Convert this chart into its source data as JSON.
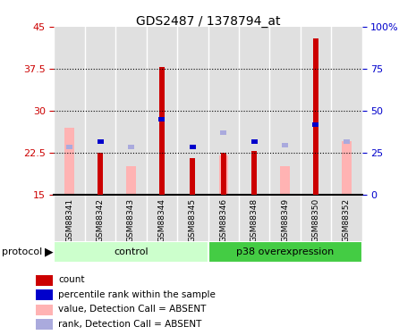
{
  "title": "GDS2487 / 1378794_at",
  "samples": [
    "GSM88341",
    "GSM88342",
    "GSM88343",
    "GSM88344",
    "GSM88345",
    "GSM88346",
    "GSM88348",
    "GSM88349",
    "GSM88350",
    "GSM88352"
  ],
  "red_values": [
    null,
    22.5,
    null,
    37.8,
    21.5,
    22.5,
    22.8,
    null,
    43.0,
    null
  ],
  "pink_values": [
    27.0,
    null,
    20.0,
    null,
    null,
    22.0,
    null,
    20.0,
    null,
    24.5
  ],
  "blue_values": [
    null,
    24.5,
    null,
    28.5,
    23.5,
    null,
    24.5,
    null,
    27.5,
    null
  ],
  "lblue_values": [
    23.5,
    null,
    23.5,
    null,
    null,
    26.0,
    null,
    23.8,
    null,
    24.5
  ],
  "ylim_left": [
    15,
    45
  ],
  "ylim_right": [
    0,
    100
  ],
  "yticks_left": [
    15,
    22.5,
    30,
    37.5,
    45
  ],
  "yticks_right": [
    0,
    25,
    50,
    75,
    100
  ],
  "ytick_labels_left": [
    "15",
    "22.5",
    "30",
    "37.5",
    "45"
  ],
  "ytick_labels_right": [
    "0",
    "25",
    "50",
    "75",
    "100%"
  ],
  "dotted_lines": [
    22.5,
    30,
    37.5
  ],
  "red_color": "#cc0000",
  "pink_color": "#ffb3b3",
  "blue_color": "#0000cc",
  "lblue_color": "#aaaadd",
  "control_color_light": "#ccffcc",
  "p38_color_strong": "#44cc44",
  "bg_color": "#e0e0e0",
  "protocol_label": "protocol",
  "legend_entries": [
    [
      "#cc0000",
      "count"
    ],
    [
      "#0000cc",
      "percentile rank within the sample"
    ],
    [
      "#ffb3b3",
      "value, Detection Call = ABSENT"
    ],
    [
      "#aaaadd",
      "rank, Detection Call = ABSENT"
    ]
  ]
}
